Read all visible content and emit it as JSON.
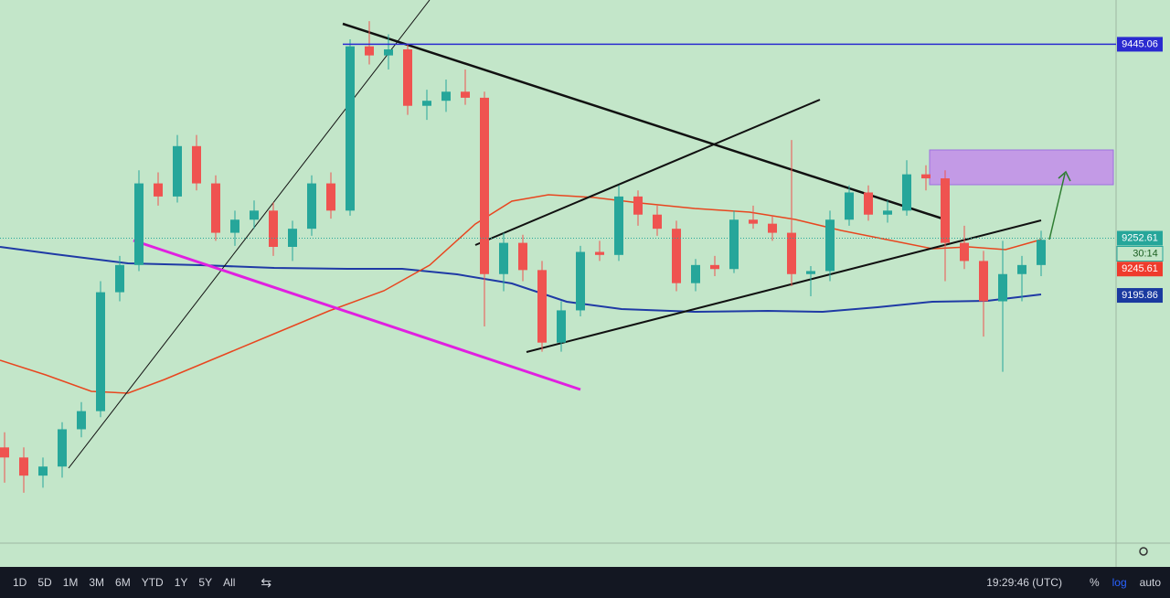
{
  "chart_data": {
    "type": "candlestick",
    "ylim": [
      8950,
      9489
    ],
    "candles": [
      [
        9045,
        9060,
        9010,
        9035
      ],
      [
        9035,
        9045,
        9000,
        9017
      ],
      [
        9017,
        9035,
        9005,
        9026
      ],
      [
        9026,
        9070,
        9015,
        9063
      ],
      [
        9063,
        9090,
        9055,
        9081
      ],
      [
        9081,
        9210,
        9075,
        9199
      ],
      [
        9199,
        9235,
        9190,
        9226
      ],
      [
        9226,
        9320,
        9220,
        9307
      ],
      [
        9307,
        9318,
        9285,
        9294
      ],
      [
        9294,
        9355,
        9288,
        9344
      ],
      [
        9344,
        9355,
        9300,
        9307
      ],
      [
        9307,
        9315,
        9250,
        9258
      ],
      [
        9258,
        9280,
        9245,
        9271
      ],
      [
        9271,
        9290,
        9262,
        9280
      ],
      [
        9280,
        9288,
        9235,
        9244
      ],
      [
        9244,
        9270,
        9230,
        9262
      ],
      [
        9262,
        9315,
        9255,
        9307
      ],
      [
        9307,
        9318,
        9272,
        9280
      ],
      [
        9280,
        9450,
        9275,
        9443
      ],
      [
        9443,
        9468,
        9425,
        9434
      ],
      [
        9434,
        9455,
        9420,
        9440
      ],
      [
        9440,
        9446,
        9375,
        9384
      ],
      [
        9384,
        9400,
        9370,
        9389
      ],
      [
        9389,
        9410,
        9378,
        9398
      ],
      [
        9398,
        9420,
        9385,
        9392
      ],
      [
        9392,
        9398,
        9165,
        9217
      ],
      [
        9217,
        9258,
        9200,
        9248
      ],
      [
        9248,
        9256,
        9210,
        9221
      ],
      [
        9221,
        9230,
        9140,
        9149
      ],
      [
        9149,
        9190,
        9140,
        9181
      ],
      [
        9181,
        9245,
        9175,
        9239
      ],
      [
        9239,
        9250,
        9230,
        9236
      ],
      [
        9236,
        9305,
        9230,
        9294
      ],
      [
        9294,
        9300,
        9265,
        9276
      ],
      [
        9276,
        9285,
        9255,
        9262
      ],
      [
        9262,
        9270,
        9200,
        9208
      ],
      [
        9208,
        9232,
        9200,
        9226
      ],
      [
        9226,
        9235,
        9215,
        9222
      ],
      [
        9222,
        9280,
        9218,
        9271
      ],
      [
        9271,
        9285,
        9262,
        9267
      ],
      [
        9267,
        9275,
        9250,
        9258
      ],
      [
        9258,
        9350,
        9205,
        9217
      ],
      [
        9217,
        9225,
        9195,
        9220
      ],
      [
        9220,
        9280,
        9210,
        9271
      ],
      [
        9271,
        9305,
        9265,
        9298
      ],
      [
        9298,
        9305,
        9270,
        9276
      ],
      [
        9276,
        9290,
        9268,
        9280
      ],
      [
        9280,
        9330,
        9275,
        9316
      ],
      [
        9316,
        9325,
        9300,
        9312
      ],
      [
        9312,
        9320,
        9210,
        9248
      ],
      [
        9248,
        9265,
        9222,
        9230
      ],
      [
        9230,
        9240,
        9155,
        9190
      ],
      [
        9190,
        9250,
        9120,
        9217
      ],
      [
        9217,
        9235,
        9190,
        9226
      ],
      [
        9226,
        9260,
        9215,
        9251
      ]
    ],
    "up_color": "#26a69a",
    "down_color": "#ef5350",
    "price_labels": [
      {
        "value": 9445.06,
        "label": "9445.06",
        "color": "#2a2ad0"
      },
      {
        "value": 9252.61,
        "label": "9252.61",
        "color": "#26a69a"
      },
      {
        "value": 9245.61,
        "label": "9245.61",
        "color": "#ef3b2c"
      },
      {
        "value": 9195.86,
        "label": "9195.86",
        "color": "#1a3aa0"
      }
    ],
    "countdown": "30:14"
  },
  "toolbar": {
    "ranges": [
      "1D",
      "5D",
      "1M",
      "3M",
      "6M",
      "YTD",
      "1Y",
      "5Y",
      "All"
    ],
    "time": "19:29:46 (UTC)",
    "percent": "%",
    "log": "log",
    "auto": "auto"
  }
}
